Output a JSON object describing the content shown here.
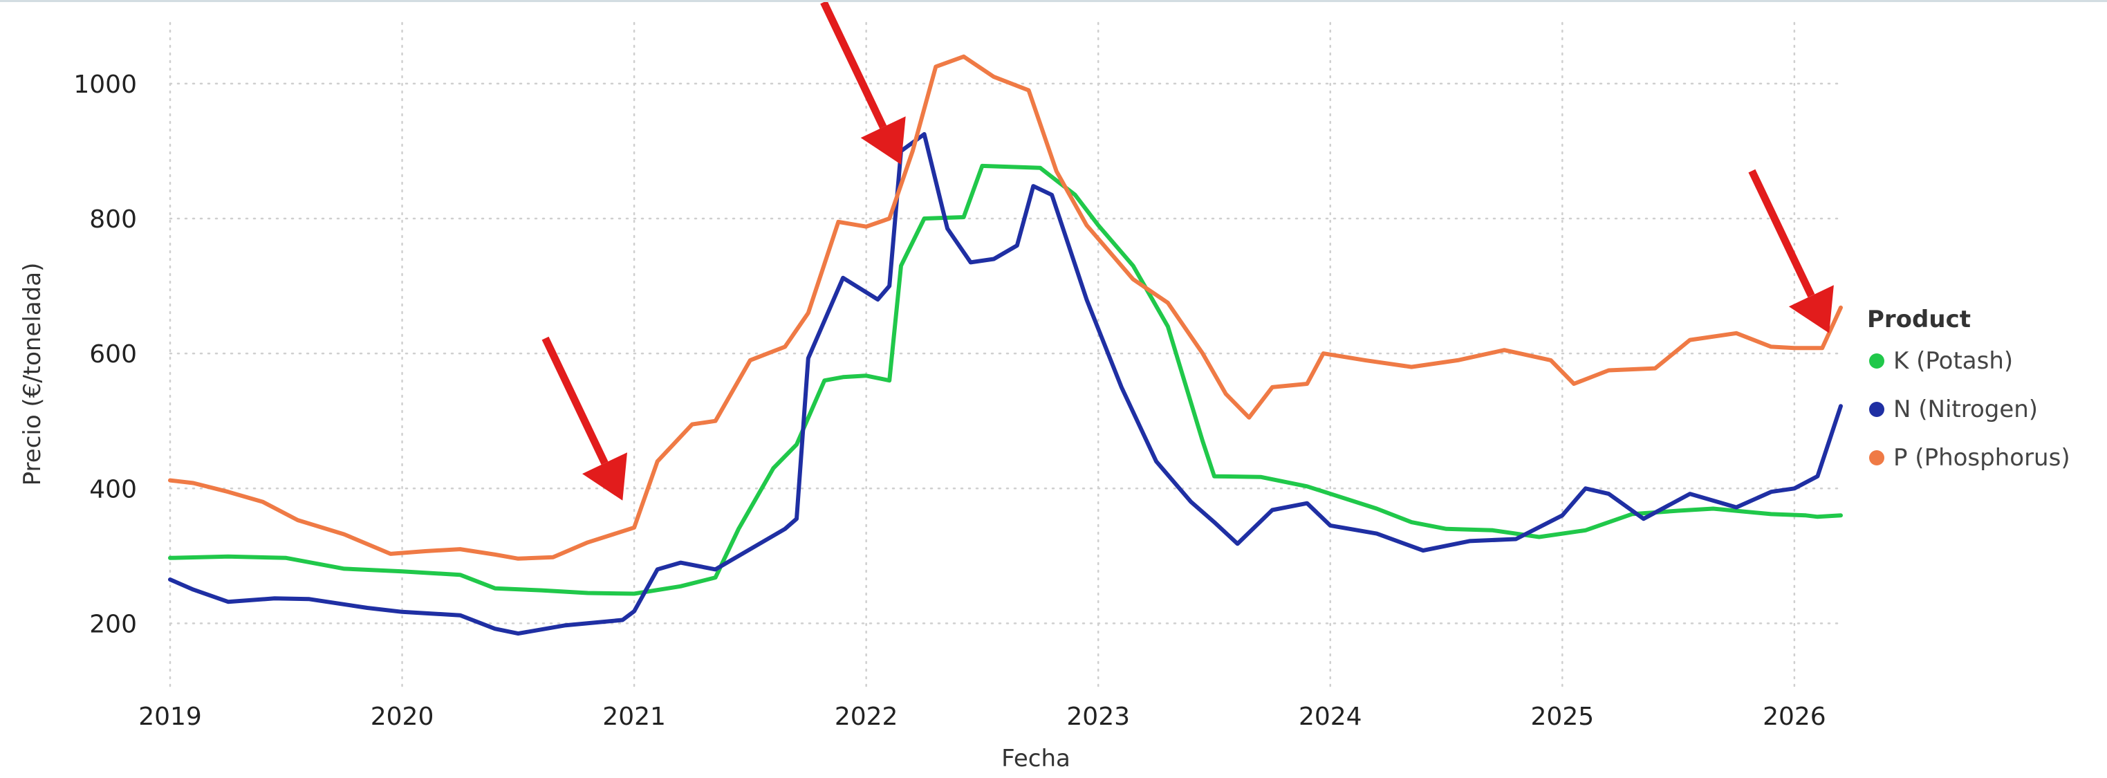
{
  "chart_data": {
    "type": "line",
    "xlabel": "Fecha",
    "ylabel": "Precio (€/tonelada)",
    "xlim": [
      2019.0,
      2026.2
    ],
    "ylim": [
      100,
      1090
    ],
    "x_ticks": [
      {
        "value": 2019,
        "label": "2019"
      },
      {
        "value": 2020,
        "label": "2020"
      },
      {
        "value": 2021,
        "label": "2021"
      },
      {
        "value": 2022,
        "label": "2022"
      },
      {
        "value": 2023,
        "label": "2023"
      },
      {
        "value": 2024,
        "label": "2024"
      },
      {
        "value": 2025,
        "label": "2025"
      },
      {
        "value": 2026,
        "label": "2026"
      }
    ],
    "y_ticks": [
      {
        "value": 200,
        "label": "200"
      },
      {
        "value": 400,
        "label": "400"
      },
      {
        "value": 600,
        "label": "600"
      },
      {
        "value": 800,
        "label": "800"
      },
      {
        "value": 1000,
        "label": "1000"
      }
    ],
    "grid": true,
    "legend": {
      "title": "Product",
      "position": "right"
    },
    "series": [
      {
        "name": "K (Potash)",
        "color": "#20c84a",
        "points": [
          [
            2019.0,
            297
          ],
          [
            2019.25,
            299
          ],
          [
            2019.5,
            297
          ],
          [
            2019.75,
            281
          ],
          [
            2020.0,
            277
          ],
          [
            2020.25,
            272
          ],
          [
            2020.4,
            252
          ],
          [
            2020.6,
            249
          ],
          [
            2020.8,
            245
          ],
          [
            2021.0,
            244
          ],
          [
            2021.2,
            255
          ],
          [
            2021.35,
            268
          ],
          [
            2021.45,
            340
          ],
          [
            2021.6,
            430
          ],
          [
            2021.7,
            465
          ],
          [
            2021.82,
            560
          ],
          [
            2021.9,
            565
          ],
          [
            2022.0,
            567
          ],
          [
            2022.1,
            560
          ],
          [
            2022.15,
            730
          ],
          [
            2022.25,
            800
          ],
          [
            2022.42,
            802
          ],
          [
            2022.5,
            878
          ],
          [
            2022.75,
            875
          ],
          [
            2022.9,
            835
          ],
          [
            2023.0,
            790
          ],
          [
            2023.15,
            730
          ],
          [
            2023.3,
            640
          ],
          [
            2023.45,
            470
          ],
          [
            2023.5,
            418
          ],
          [
            2023.7,
            417
          ],
          [
            2023.9,
            403
          ],
          [
            2024.2,
            370
          ],
          [
            2024.35,
            350
          ],
          [
            2024.5,
            340
          ],
          [
            2024.7,
            338
          ],
          [
            2024.9,
            328
          ],
          [
            2025.1,
            338
          ],
          [
            2025.3,
            362
          ],
          [
            2025.5,
            367
          ],
          [
            2025.65,
            370
          ],
          [
            2025.9,
            362
          ],
          [
            2026.05,
            360
          ],
          [
            2026.1,
            358
          ],
          [
            2026.2,
            360
          ]
        ]
      },
      {
        "name": "N (Nitrogen)",
        "color": "#1f2fa3",
        "points": [
          [
            2019.0,
            265
          ],
          [
            2019.1,
            250
          ],
          [
            2019.25,
            232
          ],
          [
            2019.45,
            237
          ],
          [
            2019.6,
            236
          ],
          [
            2019.85,
            223
          ],
          [
            2020.0,
            217
          ],
          [
            2020.25,
            212
          ],
          [
            2020.4,
            192
          ],
          [
            2020.5,
            185
          ],
          [
            2020.7,
            197
          ],
          [
            2020.95,
            205
          ],
          [
            2021.0,
            218
          ],
          [
            2021.1,
            280
          ],
          [
            2021.2,
            290
          ],
          [
            2021.35,
            280
          ],
          [
            2021.55,
            320
          ],
          [
            2021.65,
            340
          ],
          [
            2021.7,
            355
          ],
          [
            2021.75,
            593
          ],
          [
            2021.9,
            712
          ],
          [
            2022.05,
            680
          ],
          [
            2022.1,
            700
          ],
          [
            2022.15,
            900
          ],
          [
            2022.25,
            925
          ],
          [
            2022.35,
            785
          ],
          [
            2022.45,
            735
          ],
          [
            2022.55,
            740
          ],
          [
            2022.65,
            760
          ],
          [
            2022.72,
            848
          ],
          [
            2022.8,
            835
          ],
          [
            2022.95,
            680
          ],
          [
            2023.1,
            550
          ],
          [
            2023.25,
            440
          ],
          [
            2023.4,
            380
          ],
          [
            2023.5,
            350
          ],
          [
            2023.6,
            318
          ],
          [
            2023.75,
            368
          ],
          [
            2023.9,
            378
          ],
          [
            2024.0,
            345
          ],
          [
            2024.2,
            333
          ],
          [
            2024.4,
            308
          ],
          [
            2024.6,
            322
          ],
          [
            2024.8,
            325
          ],
          [
            2025.0,
            360
          ],
          [
            2025.1,
            400
          ],
          [
            2025.2,
            392
          ],
          [
            2025.35,
            355
          ],
          [
            2025.55,
            392
          ],
          [
            2025.75,
            372
          ],
          [
            2025.9,
            395
          ],
          [
            2026.0,
            400
          ],
          [
            2026.1,
            418
          ],
          [
            2026.15,
            470
          ],
          [
            2026.2,
            522
          ]
        ]
      },
      {
        "name": "P (Phosphorus)",
        "color": "#ef7a45",
        "points": [
          [
            2019.0,
            412
          ],
          [
            2019.1,
            408
          ],
          [
            2019.25,
            395
          ],
          [
            2019.4,
            380
          ],
          [
            2019.55,
            353
          ],
          [
            2019.75,
            332
          ],
          [
            2019.95,
            303
          ],
          [
            2020.1,
            307
          ],
          [
            2020.25,
            310
          ],
          [
            2020.4,
            302
          ],
          [
            2020.5,
            296
          ],
          [
            2020.65,
            298
          ],
          [
            2020.8,
            320
          ],
          [
            2021.0,
            342
          ],
          [
            2021.1,
            440
          ],
          [
            2021.25,
            495
          ],
          [
            2021.35,
            500
          ],
          [
            2021.5,
            590
          ],
          [
            2021.65,
            610
          ],
          [
            2021.75,
            660
          ],
          [
            2021.88,
            795
          ],
          [
            2022.0,
            788
          ],
          [
            2022.1,
            800
          ],
          [
            2022.2,
            900
          ],
          [
            2022.3,
            1025
          ],
          [
            2022.42,
            1040
          ],
          [
            2022.55,
            1010
          ],
          [
            2022.7,
            990
          ],
          [
            2022.82,
            870
          ],
          [
            2022.95,
            790
          ],
          [
            2023.15,
            710
          ],
          [
            2023.3,
            675
          ],
          [
            2023.45,
            600
          ],
          [
            2023.55,
            540
          ],
          [
            2023.65,
            505
          ],
          [
            2023.75,
            550
          ],
          [
            2023.9,
            555
          ],
          [
            2023.97,
            600
          ],
          [
            2024.15,
            590
          ],
          [
            2024.35,
            580
          ],
          [
            2024.55,
            590
          ],
          [
            2024.75,
            605
          ],
          [
            2024.95,
            590
          ],
          [
            2025.05,
            555
          ],
          [
            2025.2,
            575
          ],
          [
            2025.4,
            578
          ],
          [
            2025.55,
            620
          ],
          [
            2025.75,
            630
          ],
          [
            2025.9,
            610
          ],
          [
            2026.0,
            608
          ],
          [
            2026.12,
            608
          ],
          [
            2026.2,
            668
          ]
        ]
      }
    ],
    "annotations": [
      {
        "type": "arrow",
        "color": "#e21c1c",
        "points_to": [
          2020.95,
          382
        ]
      },
      {
        "type": "arrow",
        "color": "#e21c1c",
        "points_to": [
          2022.15,
          880
        ]
      },
      {
        "type": "arrow",
        "color": "#e21c1c",
        "points_to": [
          2026.15,
          630
        ]
      }
    ]
  }
}
